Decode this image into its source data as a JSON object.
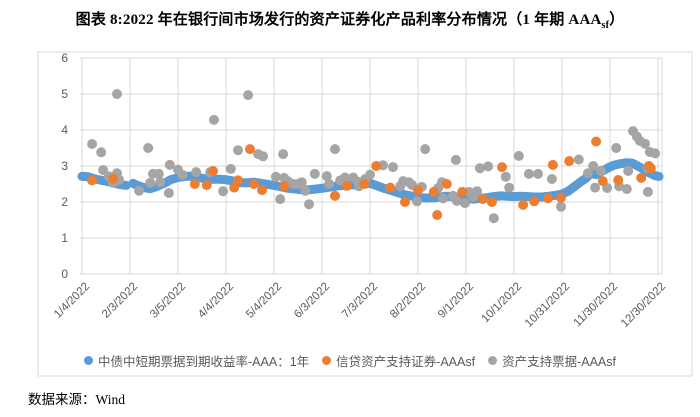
{
  "title": {
    "prefix": "图表 8:2022 年在银行间市场发行的资产证券化产品利率分布情况（1 年期 AAA",
    "subscript": "sf",
    "suffix": "）"
  },
  "source": {
    "text": "数据来源：Wind"
  },
  "colors": {
    "blue": "#5B9BD5",
    "orange": "#ED7D31",
    "gray": "#A5A5A5",
    "grid": "#D9D9D9",
    "axis_text": "#595959"
  },
  "legend": [
    {
      "label": "中债中短期票据到期收益率-AAA：1年",
      "color_key": "blue"
    },
    {
      "label": "信贷资产支持证券-AAAsf",
      "color_key": "orange"
    },
    {
      "label": "资产支持票据-AAAsf",
      "color_key": "gray"
    }
  ],
  "chart_data": {
    "type": "scatter",
    "title": "2022 年在银行间市场发行的资产证券化产品利率分布情况（1 年期 AAAsf）",
    "xlabel": "",
    "ylabel": "",
    "ylim": [
      0,
      6
    ],
    "y_ticks": [
      0,
      1,
      2,
      3,
      4,
      5,
      6
    ],
    "grid": true,
    "legend_position": "bottom",
    "x_tick_labels": [
      "1/4/2022",
      "2/3/2022",
      "3/5/2022",
      "4/4/2022",
      "5/4/2022",
      "6/3/2022",
      "7/3/2022",
      "8/2/2022",
      "9/1/2022",
      "10/1/2022",
      "10/31/2022",
      "11/30/2022",
      "12/30/2022"
    ],
    "x_unit": "tick index (0 = 1/4/2022 ... 12 = 12/30/2022)",
    "y_unit": "percent",
    "series": [
      {
        "name": "中债中短期票据到期收益率-AAA：1年",
        "color_key": "blue",
        "style": "thick-line",
        "segments": [
          [
            [
              0.0,
              2.71
            ],
            [
              0.13,
              2.7
            ],
            [
              0.27,
              2.64
            ],
            [
              0.42,
              2.6
            ],
            [
              0.56,
              2.56
            ],
            [
              0.71,
              2.51
            ],
            [
              0.81,
              2.48
            ],
            [
              0.92,
              2.46
            ]
          ],
          [
            [
              1.06,
              2.52
            ],
            [
              1.17,
              2.45
            ],
            [
              1.29,
              2.4
            ],
            [
              1.42,
              2.37
            ],
            [
              1.56,
              2.43
            ],
            [
              1.71,
              2.52
            ],
            [
              1.85,
              2.62
            ],
            [
              2.0,
              2.68
            ],
            [
              2.15,
              2.71
            ],
            [
              2.29,
              2.72
            ],
            [
              2.44,
              2.68
            ],
            [
              2.58,
              2.64
            ],
            [
              2.73,
              2.63
            ],
            [
              2.88,
              2.63
            ],
            [
              3.0,
              2.62
            ],
            [
              3.15,
              2.58
            ],
            [
              3.29,
              2.54
            ],
            [
              3.44,
              2.53
            ],
            [
              3.58,
              2.55
            ],
            [
              3.73,
              2.52
            ],
            [
              3.88,
              2.49
            ],
            [
              4.0,
              2.46
            ],
            [
              4.15,
              2.42
            ],
            [
              4.29,
              2.38
            ],
            [
              4.44,
              2.36
            ],
            [
              4.58,
              2.34
            ],
            [
              4.73,
              2.34
            ],
            [
              4.88,
              2.36
            ],
            [
              5.0,
              2.38
            ],
            [
              5.15,
              2.41
            ],
            [
              5.29,
              2.44
            ],
            [
              5.44,
              2.46
            ],
            [
              5.58,
              2.48
            ],
            [
              5.73,
              2.47
            ],
            [
              5.88,
              2.5
            ],
            [
              6.0,
              2.52
            ],
            [
              6.15,
              2.45
            ],
            [
              6.29,
              2.38
            ],
            [
              6.44,
              2.32
            ],
            [
              6.58,
              2.26
            ],
            [
              6.73,
              2.2
            ],
            [
              6.88,
              2.16
            ],
            [
              7.0,
              2.13
            ],
            [
              7.15,
              2.11
            ],
            [
              7.29,
              2.11
            ],
            [
              7.44,
              2.13
            ],
            [
              7.58,
              2.16
            ],
            [
              7.73,
              2.15
            ],
            [
              7.88,
              2.12
            ],
            [
              8.0,
              2.1
            ],
            [
              8.15,
              2.08
            ],
            [
              8.29,
              2.1
            ],
            [
              8.44,
              2.12
            ],
            [
              8.58,
              2.15
            ],
            [
              8.73,
              2.17
            ],
            [
              8.88,
              2.16
            ],
            [
              9.0,
              2.15
            ],
            [
              9.15,
              2.16
            ],
            [
              9.29,
              2.15
            ],
            [
              9.44,
              2.14
            ],
            [
              9.58,
              2.14
            ],
            [
              9.73,
              2.16
            ],
            [
              9.88,
              2.19
            ],
            [
              10.0,
              2.22
            ],
            [
              10.13,
              2.3
            ],
            [
              10.25,
              2.42
            ],
            [
              10.38,
              2.55
            ],
            [
              10.5,
              2.66
            ],
            [
              10.6,
              2.8
            ],
            [
              10.71,
              2.76
            ],
            [
              10.83,
              2.85
            ],
            [
              10.96,
              2.95
            ],
            [
              11.08,
              3.02
            ],
            [
              11.21,
              3.06
            ],
            [
              11.33,
              3.09
            ],
            [
              11.46,
              3.08
            ],
            [
              11.58,
              3.0
            ],
            [
              11.71,
              2.9
            ],
            [
              11.83,
              2.8
            ],
            [
              11.94,
              2.73
            ],
            [
              12.02,
              2.71
            ]
          ]
        ]
      },
      {
        "name": "信贷资产支持证券-AAAsf",
        "color_key": "orange",
        "style": "dots",
        "points": [
          [
            0.21,
            2.6
          ],
          [
            0.65,
            2.65
          ],
          [
            2.35,
            2.5
          ],
          [
            2.6,
            2.47
          ],
          [
            2.73,
            2.86
          ],
          [
            3.17,
            2.4
          ],
          [
            3.25,
            2.6
          ],
          [
            3.5,
            3.47
          ],
          [
            3.58,
            2.5
          ],
          [
            3.75,
            2.33
          ],
          [
            4.21,
            2.44
          ],
          [
            5.27,
            2.17
          ],
          [
            5.52,
            2.45
          ],
          [
            5.88,
            2.5
          ],
          [
            6.13,
            3.0
          ],
          [
            6.42,
            2.4
          ],
          [
            6.73,
            2.0
          ],
          [
            7.0,
            2.33
          ],
          [
            7.33,
            2.28
          ],
          [
            7.4,
            1.64
          ],
          [
            7.6,
            2.5
          ],
          [
            7.92,
            2.28
          ],
          [
            8.35,
            2.08
          ],
          [
            8.54,
            2.0
          ],
          [
            8.75,
            2.97
          ],
          [
            9.19,
            1.92
          ],
          [
            9.42,
            2.02
          ],
          [
            9.71,
            2.1
          ],
          [
            9.81,
            3.03
          ],
          [
            9.98,
            2.12
          ],
          [
            10.15,
            3.14
          ],
          [
            10.71,
            3.68
          ],
          [
            10.85,
            2.58
          ],
          [
            11.17,
            2.61
          ],
          [
            11.65,
            2.67
          ],
          [
            11.81,
            3.0
          ],
          [
            11.85,
            2.94
          ]
        ]
      },
      {
        "name": "资产支持票据-AAAsf",
        "color_key": "gray",
        "style": "dots",
        "points": [
          [
            0.21,
            3.61
          ],
          [
            0.4,
            3.38
          ],
          [
            0.44,
            2.89
          ],
          [
            0.56,
            2.71
          ],
          [
            0.65,
            2.53
          ],
          [
            0.73,
            5.0
          ],
          [
            0.73,
            2.8
          ],
          [
            0.77,
            2.62
          ],
          [
            1.19,
            2.31
          ],
          [
            1.38,
            3.5
          ],
          [
            1.42,
            2.53
          ],
          [
            1.48,
            2.78
          ],
          [
            1.6,
            2.78
          ],
          [
            1.63,
            2.55
          ],
          [
            1.81,
            2.25
          ],
          [
            1.83,
            3.03
          ],
          [
            2.0,
            2.9
          ],
          [
            2.1,
            2.75
          ],
          [
            2.38,
            2.83
          ],
          [
            2.67,
            2.83
          ],
          [
            2.75,
            4.28
          ],
          [
            2.94,
            2.3
          ],
          [
            3.1,
            2.92
          ],
          [
            3.25,
            3.44
          ],
          [
            3.46,
            4.97
          ],
          [
            3.67,
            3.33
          ],
          [
            3.77,
            3.27
          ],
          [
            4.04,
            2.7
          ],
          [
            4.13,
            2.08
          ],
          [
            4.19,
            3.33
          ],
          [
            4.21,
            2.67
          ],
          [
            4.29,
            2.58
          ],
          [
            4.4,
            2.5
          ],
          [
            4.5,
            2.5
          ],
          [
            4.58,
            2.55
          ],
          [
            4.65,
            2.31
          ],
          [
            4.73,
            1.94
          ],
          [
            4.85,
            2.78
          ],
          [
            5.1,
            2.72
          ],
          [
            5.15,
            2.5
          ],
          [
            5.27,
            3.47
          ],
          [
            5.38,
            2.6
          ],
          [
            5.48,
            2.68
          ],
          [
            5.65,
            2.68
          ],
          [
            5.75,
            2.56
          ],
          [
            5.77,
            2.44
          ],
          [
            5.9,
            2.64
          ],
          [
            6.0,
            2.76
          ],
          [
            6.27,
            3.02
          ],
          [
            6.48,
            2.97
          ],
          [
            6.63,
            2.44
          ],
          [
            6.69,
            2.58
          ],
          [
            6.81,
            2.55
          ],
          [
            6.88,
            2.47
          ],
          [
            6.98,
            2.02
          ],
          [
            7.08,
            2.42
          ],
          [
            7.15,
            3.47
          ],
          [
            7.42,
            2.39
          ],
          [
            7.5,
            2.55
          ],
          [
            7.52,
            2.1
          ],
          [
            7.73,
            2.17
          ],
          [
            7.79,
            3.17
          ],
          [
            7.81,
            2.03
          ],
          [
            7.98,
            1.97
          ],
          [
            8.06,
            2.28
          ],
          [
            8.15,
            2.14
          ],
          [
            8.23,
            2.3
          ],
          [
            8.29,
            2.94
          ],
          [
            8.46,
            2.99
          ],
          [
            8.58,
            1.55
          ],
          [
            8.83,
            2.7
          ],
          [
            8.9,
            2.4
          ],
          [
            9.1,
            3.28
          ],
          [
            9.31,
            2.78
          ],
          [
            9.5,
            2.78
          ],
          [
            9.79,
            2.64
          ],
          [
            9.98,
            1.87
          ],
          [
            10.35,
            3.18
          ],
          [
            10.54,
            2.8
          ],
          [
            10.65,
            3.0
          ],
          [
            10.69,
            2.4
          ],
          [
            10.81,
            2.86
          ],
          [
            10.94,
            2.39
          ],
          [
            11.13,
            3.5
          ],
          [
            11.19,
            2.44
          ],
          [
            11.35,
            2.36
          ],
          [
            11.38,
            2.86
          ],
          [
            11.48,
            3.97
          ],
          [
            11.56,
            3.82
          ],
          [
            11.62,
            3.7
          ],
          [
            11.73,
            3.62
          ],
          [
            11.79,
            2.94
          ],
          [
            11.79,
            2.28
          ],
          [
            11.83,
            3.39
          ],
          [
            11.94,
            3.35
          ]
        ]
      }
    ]
  }
}
